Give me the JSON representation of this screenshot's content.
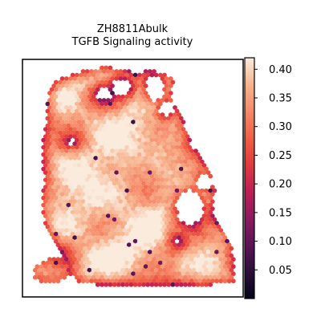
{
  "chart_data": {
    "type": "heatmap",
    "title": "ZH8811Abulk",
    "subtitle": "TGFB Signaling activity",
    "xlabel": "",
    "ylabel": "",
    "axes_ticks": false,
    "colormap": "rocket",
    "colorbar": {
      "range": [
        0.0,
        0.42
      ],
      "ticks": [
        "0.05",
        "0.10",
        "0.15",
        "0.20",
        "0.25",
        "0.30",
        "0.35",
        "0.40"
      ],
      "stops": [
        "#03051a",
        "#2b0f3a",
        "#5b1356",
        "#8c1a5f",
        "#bd1f56",
        "#e13a3f",
        "#f06043",
        "#f5896a",
        "#f7b48f",
        "#faebdd"
      ]
    },
    "tissue_value_summary": {
      "center_range": [
        0.32,
        0.42
      ],
      "border_range": [
        0.15,
        0.25
      ],
      "low_spots_min": 0.05
    }
  }
}
